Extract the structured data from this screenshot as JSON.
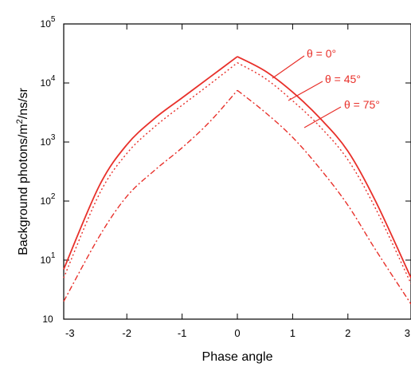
{
  "chart_data": {
    "type": "line",
    "xlabel": "Phase angle",
    "ylabel": "Background    photons/m²/ns/sr",
    "xlim": [
      -3.14159,
      3.14159
    ],
    "ylim_log10": [
      0,
      5
    ],
    "y_scale": "log",
    "grid": false,
    "x_ticks": [
      {
        "value": -3.14159,
        "label": "-3"
      },
      {
        "value": -2,
        "label": "-2"
      },
      {
        "value": -1,
        "label": "-1"
      },
      {
        "value": 0,
        "label": "0"
      },
      {
        "value": 1,
        "label": "1"
      },
      {
        "value": 2,
        "label": "2"
      },
      {
        "value": 3.14159,
        "label": "3"
      }
    ],
    "y_ticks": [
      {
        "value": 1,
        "base": "10",
        "exp": ""
      },
      {
        "value": 10,
        "base": "10",
        "exp": "1"
      },
      {
        "value": 100,
        "base": "10",
        "exp": "2"
      },
      {
        "value": 1000,
        "base": "10",
        "exp": "3"
      },
      {
        "value": 10000,
        "base": "10",
        "exp": "4"
      },
      {
        "value": 100000,
        "base": "10",
        "exp": "5"
      }
    ],
    "series_color": "#e8302a",
    "series": [
      {
        "name": "θ = 0°",
        "style": "solid",
        "x": [
          -3.14159,
          -2.5,
          -2.0,
          -1.5,
          -1.0,
          -0.5,
          0.0,
          0.5,
          1.0,
          1.5,
          2.0,
          2.5,
          3.14159
        ],
        "y": [
          7,
          180,
          900,
          2500,
          5600,
          12500,
          28000,
          16000,
          7000,
          2500,
          700,
          100,
          5
        ]
      },
      {
        "name": "θ = 45°",
        "style": "dotted",
        "x": [
          -3.14159,
          -2.5,
          -2.0,
          -1.5,
          -1.0,
          -0.5,
          0.0,
          0.5,
          1.0,
          1.5,
          2.0,
          2.5,
          3.14159
        ],
        "y": [
          5,
          130,
          640,
          1800,
          4200,
          9500,
          22000,
          12000,
          5000,
          1800,
          500,
          75,
          4
        ]
      },
      {
        "name": "θ = 75°",
        "style": "dashdot",
        "x": [
          -3.14159,
          -2.5,
          -2.0,
          -1.5,
          -1.0,
          -0.5,
          0.0,
          0.5,
          1.0,
          1.5,
          2.0,
          2.5,
          3.14159
        ],
        "y": [
          2,
          25,
          120,
          330,
          800,
          2200,
          7500,
          3200,
          1200,
          350,
          85,
          15,
          1.8
        ]
      }
    ]
  }
}
